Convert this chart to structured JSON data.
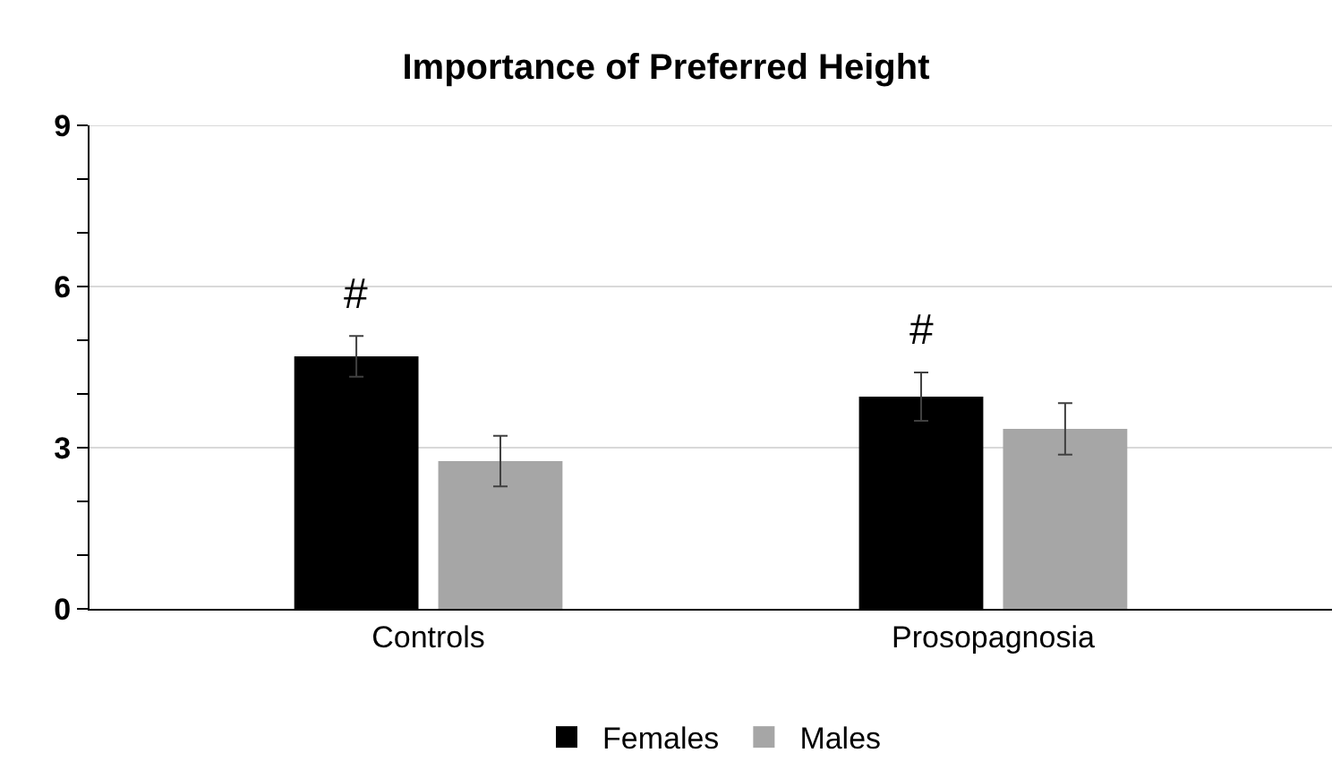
{
  "chart_data": {
    "type": "bar",
    "title": "Importance of Preferred Height",
    "categories": [
      "Controls",
      "Prosopagnosia"
    ],
    "series": [
      {
        "name": "Females",
        "color": "#000000",
        "values": [
          4.7,
          3.95
        ],
        "errors": [
          0.38,
          0.45
        ]
      },
      {
        "name": "Males",
        "color": "#a6a6a6",
        "values": [
          2.75,
          3.35
        ],
        "errors": [
          0.47,
          0.48
        ]
      }
    ],
    "ylim": [
      0,
      9
    ],
    "yticks": [
      0,
      {
        "value": 1,
        "label": null
      },
      {
        "value": 2,
        "label": null
      },
      3,
      {
        "value": 4,
        "label": null
      },
      {
        "value": 5,
        "label": null
      },
      6,
      {
        "value": 7,
        "label": null
      },
      {
        "value": 8,
        "label": null
      },
      9
    ],
    "grid": "y",
    "legend": "bottom",
    "annotations": [
      "#",
      "#"
    ]
  }
}
